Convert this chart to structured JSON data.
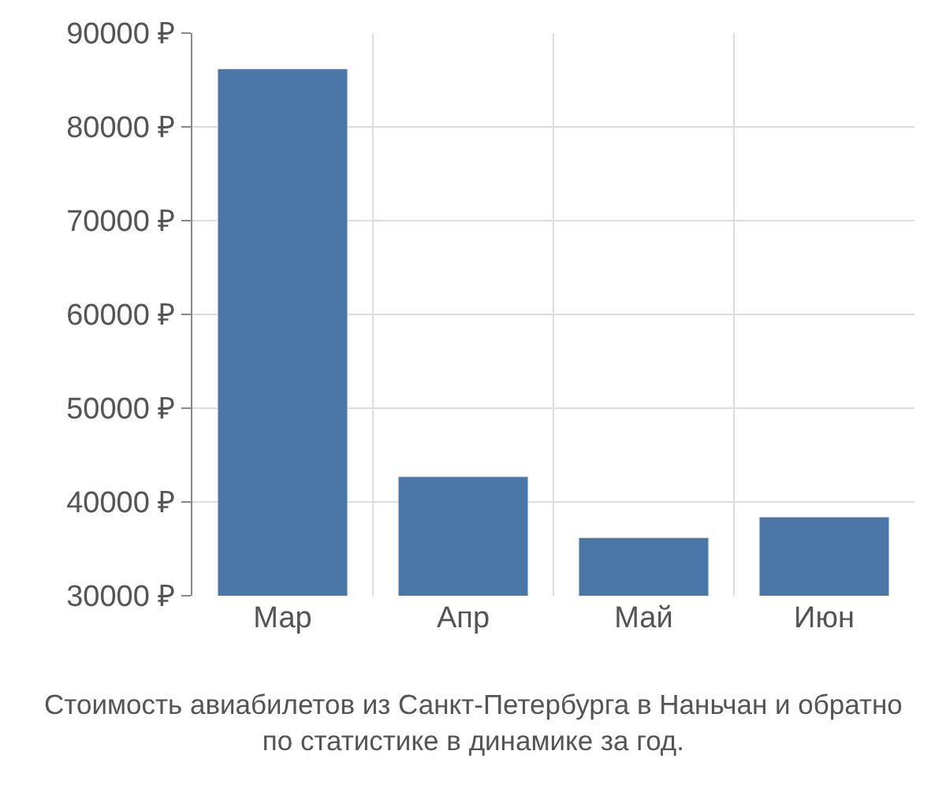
{
  "chart_data": {
    "type": "bar",
    "title": "Стоимость авиабилетов из Санкт-Петербурга в Наньчан и обратно\nпо статистике в динамике за год.",
    "categories": [
      "Мар",
      "Апр",
      "Май",
      "Июн"
    ],
    "values": [
      86200,
      42700,
      36200,
      38400
    ],
    "color": "#4a76a8",
    "ylim": [
      30000,
      90000
    ],
    "yticks": [
      {
        "value": 30000,
        "label": "30000 ₽"
      },
      {
        "value": 40000,
        "label": "40000 ₽"
      },
      {
        "value": 50000,
        "label": "50000 ₽"
      },
      {
        "value": 60000,
        "label": "60000 ₽"
      },
      {
        "value": 70000,
        "label": "70000 ₽"
      },
      {
        "value": 80000,
        "label": "80000 ₽"
      },
      {
        "value": 90000,
        "label": "90000 ₽"
      }
    ],
    "grid": true
  }
}
